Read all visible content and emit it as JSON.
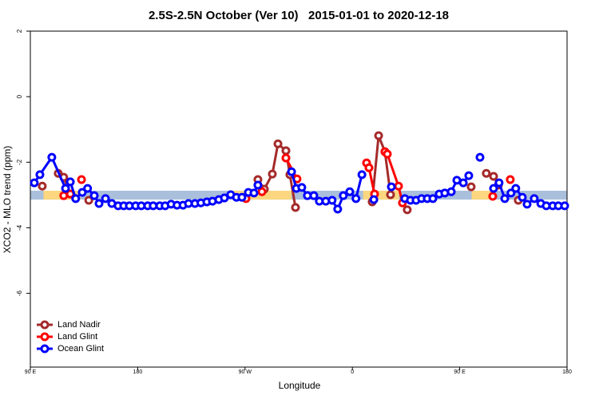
{
  "chart_data": {
    "type": "line",
    "title": "2.5S-2.5N October (Ver 10)   2015-01-01 to 2020-12-18",
    "xlabel": "Longitude",
    "ylabel": "XCO2 - MLO trend (ppm)",
    "xlim": [
      90,
      540
    ],
    "ylim": [
      -8.25,
      2
    ],
    "xticks": [
      {
        "value": 90,
        "label": "90 E"
      },
      {
        "value": 180,
        "label": "180"
      },
      {
        "value": 270,
        "label": "90 W"
      },
      {
        "value": 360,
        "label": "0"
      },
      {
        "value": 450,
        "label": "90 E"
      },
      {
        "value": 540,
        "label": "180"
      }
    ],
    "yticks": [
      2,
      0,
      -2,
      -4,
      -6
    ],
    "legend": "bottom-left",
    "band": {
      "range": [
        -3.14,
        -2.87
      ],
      "color": "#a9bfdc",
      "land_color": "#fcd77f",
      "land": [
        [
          101,
          132
        ],
        [
          259,
          309
        ],
        [
          369,
          399
        ],
        [
          460,
          477
        ]
      ]
    },
    "series": [
      {
        "name": "Land Nadir",
        "color": "#a52a2a",
        "x": [
          100,
          null,
          113.4,
          118,
          123.5,
          null,
          139,
          null,
          280.8,
          286.2,
          292.9,
          297.6,
          304.3,
          307.6,
          312.3,
          null,
          376.6,
          382,
          387.3,
          392,
          null,
          406,
          null,
          459.6,
          null,
          472.3,
          478.4,
          482.4,
          null,
          499.1
        ],
        "values": [
          -2.73,
          null,
          -2.34,
          -2.46,
          -2.97,
          null,
          -3.16,
          null,
          -2.53,
          -2.82,
          -2.36,
          -1.44,
          -1.65,
          -2.38,
          -3.38,
          null,
          -3.21,
          -1.19,
          -1.68,
          -2.99,
          null,
          -3.45,
          null,
          -2.75,
          null,
          -2.34,
          -2.43,
          -2.7,
          null,
          -3.16
        ]
      },
      {
        "name": "Land Glint",
        "color": "#ff0000",
        "x": [
          118,
          123.5,
          null,
          132.9,
          null,
          270.8,
          null,
          284.2,
          null,
          304.3,
          313.6,
          null,
          371.9,
          373.9,
          378.6,
          null,
          387.3,
          389.3,
          398.7,
          402,
          null,
          477.7,
          null,
          492.4
        ],
        "values": [
          -3.02,
          -2.97,
          null,
          -2.53,
          null,
          -3.11,
          null,
          -2.9,
          null,
          -1.87,
          -2.51,
          null,
          -2.02,
          -2.17,
          -2.97,
          null,
          -1.68,
          -1.75,
          -2.73,
          -3.24,
          null,
          -3.04,
          null,
          -2.53
        ]
      },
      {
        "name": "Ocean Glint",
        "color": "#0000ff",
        "x": [
          93.3,
          98,
          108,
          119.5,
          123.5,
          128,
          133.5,
          138,
          143.6,
          147.6,
          153,
          158.3,
          163.6,
          168.3,
          173,
          178.3,
          183,
          188.4,
          193,
          198.5,
          203,
          208,
          213,
          218,
          222.6,
          228,
          233,
          238,
          242.7,
          248,
          252.7,
          258,
          262.8,
          267.4,
          272.8,
          277.5,
          280.8,
          null,
          309,
          313,
          317.6,
          322.3,
          327.7,
          332.3,
          337.7,
          343,
          347.7,
          352.4,
          357.8,
          363,
          368,
          null,
          378,
          null,
          392.7,
          null,
          404,
          408.7,
          413.4,
          418,
          422.8,
          427.5,
          432.8,
          437.5,
          442.9,
          447.6,
          453,
          457.6,
          null,
          467,
          null,
          478.4,
          483,
          487.8,
          493,
          497,
          502.5,
          506.5,
          512.5,
          518,
          522.6,
          528,
          532.7,
          538
        ],
        "values": [
          -2.63,
          -2.38,
          -1.85,
          -2.8,
          -2.6,
          -3.11,
          -2.92,
          -2.8,
          -3.02,
          -3.26,
          -3.11,
          -3.26,
          -3.33,
          -3.33,
          -3.33,
          -3.33,
          -3.33,
          -3.33,
          -3.33,
          -3.33,
          -3.33,
          -3.28,
          -3.31,
          -3.31,
          -3.26,
          -3.26,
          -3.24,
          -3.21,
          -3.19,
          -3.14,
          -3.09,
          -2.99,
          -3.07,
          -3.07,
          -2.92,
          -2.94,
          -2.7,
          null,
          -2.29,
          -2.8,
          -2.77,
          -3.02,
          -3.02,
          -3.19,
          -3.19,
          -3.16,
          -3.43,
          -3.02,
          -2.9,
          -3.11,
          -2.38,
          null,
          -3.14,
          null,
          -2.75,
          null,
          -3.11,
          -3.16,
          -3.16,
          -3.11,
          -3.11,
          -3.11,
          -2.97,
          -2.94,
          -2.9,
          -2.55,
          -2.63,
          -2.41,
          null,
          -1.85,
          null,
          -2.8,
          -2.63,
          -3.11,
          -2.94,
          -2.8,
          -3.07,
          -3.28,
          -3.11,
          -3.26,
          -3.33,
          -3.33,
          -3.33,
          -3.33
        ]
      }
    ]
  }
}
